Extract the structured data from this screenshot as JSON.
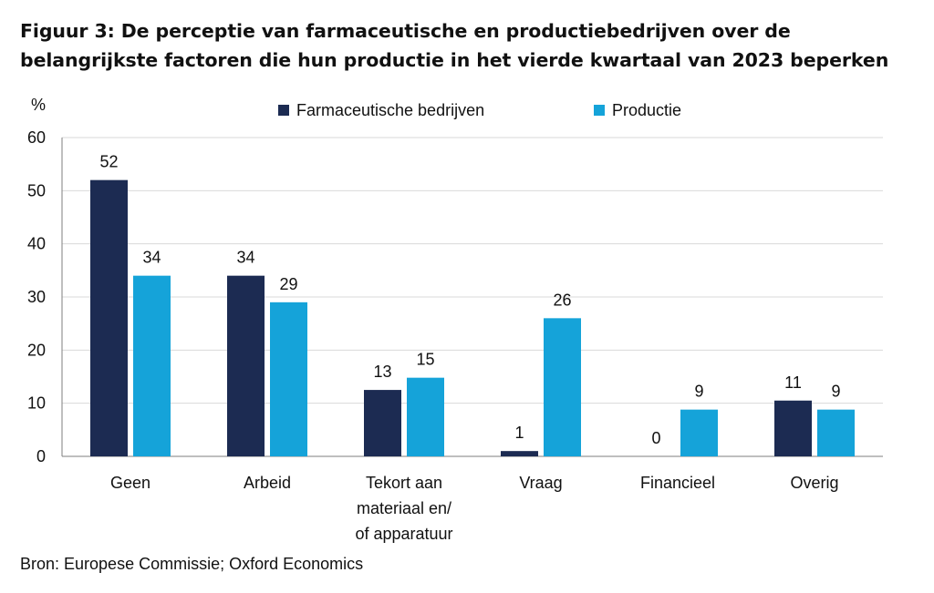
{
  "title": {
    "line1": "Figuur 3: De perceptie van farmaceutische en productiebedrijven over de",
    "line2": "belangrijkste factoren die hun productie in het vierde kwartaal van 2023 beperken"
  },
  "source": "Bron: Europese Commissie; Oxford Economics",
  "chart_data": {
    "type": "bar",
    "ylabel": "%",
    "ylim": [
      0,
      60
    ],
    "yticks": [
      0,
      10,
      20,
      30,
      40,
      50,
      60
    ],
    "grid": true,
    "legend_position": "top",
    "categories": [
      [
        "Geen"
      ],
      [
        "Arbeid"
      ],
      [
        "Tekort aan",
        "materiaal en/",
        "of apparatuur"
      ],
      [
        "Vraag"
      ],
      [
        "Financieel"
      ],
      [
        "Overig"
      ]
    ],
    "series": [
      {
        "name": "Farmaceutische bedrijven",
        "color": "#1c2b52",
        "values": [
          52,
          34,
          12.5,
          1,
          0,
          10.5
        ],
        "labels": [
          "52",
          "34",
          "13",
          "1",
          "0",
          "11"
        ]
      },
      {
        "name": "Productie",
        "color": "#15a3d9",
        "values": [
          34,
          29,
          14.8,
          26,
          8.8,
          8.8
        ],
        "labels": [
          "34",
          "29",
          "15",
          "26",
          "9",
          "9"
        ]
      }
    ]
  }
}
